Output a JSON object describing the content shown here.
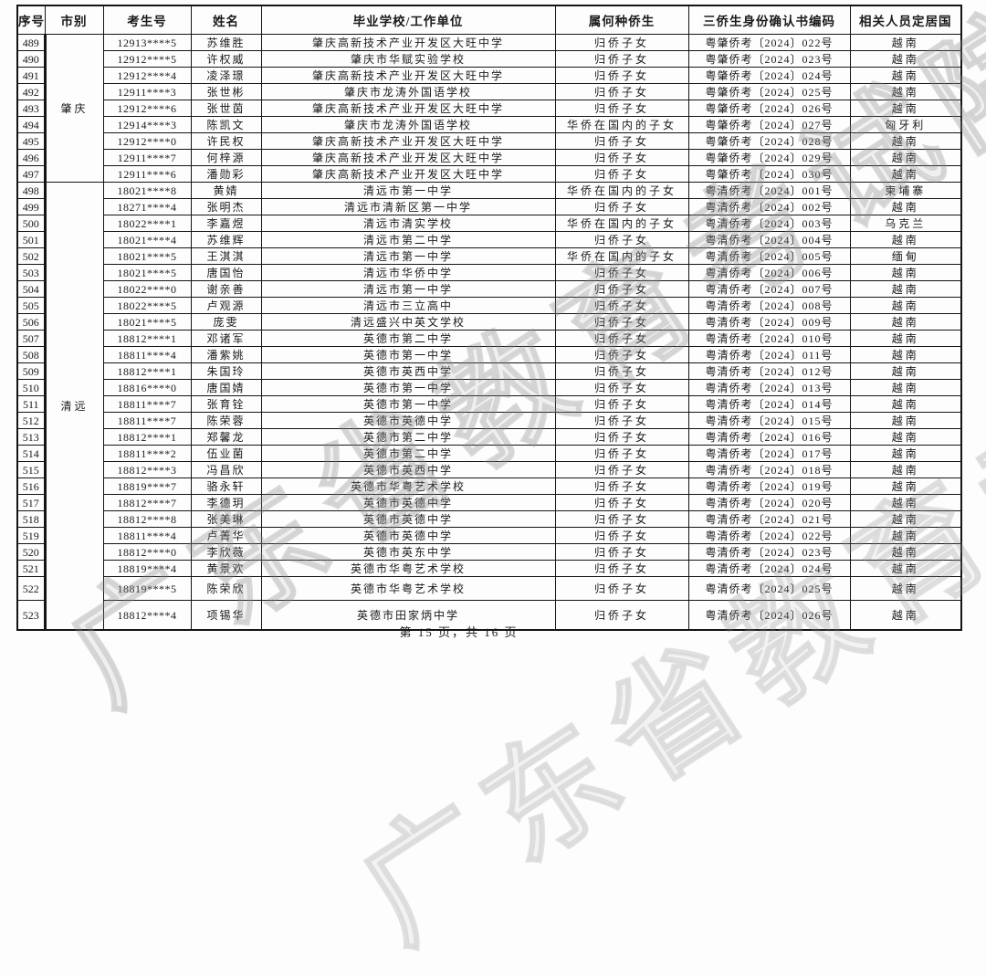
{
  "page": {
    "footer": "第 15 页，共 16 页",
    "watermark": "广东省教育考试院"
  },
  "table": {
    "headers": [
      "序号",
      "市别",
      "考生号",
      "姓名",
      "毕业学校/工作单位",
      "属何种侨生",
      "三侨生身份确认书编码",
      "相关人员定居国"
    ],
    "groups": [
      {
        "city": "肇庆",
        "rows": [
          [
            "489",
            "12913****5",
            "苏维胜",
            "肇庆高新技术产业开发区大旺中学",
            "归侨子女",
            "粤肇侨考〔2024〕022号",
            "越南"
          ],
          [
            "490",
            "12912****5",
            "许权威",
            "肇庆市华赋实验学校",
            "归侨子女",
            "粤肇侨考〔2024〕023号",
            "越南"
          ],
          [
            "491",
            "12912****4",
            "凌泽璟",
            "肇庆高新技术产业开发区大旺中学",
            "归侨子女",
            "粤肇侨考〔2024〕024号",
            "越南"
          ],
          [
            "492",
            "12911****3",
            "张世彬",
            "肇庆市龙涛外国语学校",
            "归侨子女",
            "粤肇侨考〔2024〕025号",
            "越南"
          ],
          [
            "493",
            "12912****6",
            "张世茵",
            "肇庆高新技术产业开发区大旺中学",
            "归侨子女",
            "粤肇侨考〔2024〕026号",
            "越南"
          ],
          [
            "494",
            "12914****3",
            "陈凯文",
            "肇庆市龙涛外国语学校",
            "华侨在国内的子女",
            "粤肇侨考〔2024〕027号",
            "匈牙利"
          ],
          [
            "495",
            "12912****0",
            "许民权",
            "肇庆高新技术产业开发区大旺中学",
            "归侨子女",
            "粤肇侨考〔2024〕028号",
            "越南"
          ],
          [
            "496",
            "12911****7",
            "何梓源",
            "肇庆高新技术产业开发区大旺中学",
            "归侨子女",
            "粤肇侨考〔2024〕029号",
            "越南"
          ],
          [
            "497",
            "12911****6",
            "潘勋彩",
            "肇庆高新技术产业开发区大旺中学",
            "归侨子女",
            "粤肇侨考〔2024〕030号",
            "越南"
          ]
        ]
      },
      {
        "city": "清远",
        "rows": [
          [
            "498",
            "18021****8",
            "黄婧",
            "清远市第一中学",
            "华侨在国内的子女",
            "粤清侨考〔2024〕001号",
            "柬埔寨"
          ],
          [
            "499",
            "18271****4",
            "张明杰",
            "清远市清新区第一中学",
            "归侨子女",
            "粤清侨考〔2024〕002号",
            "越南"
          ],
          [
            "500",
            "18022****1",
            "李嘉煜",
            "清远市清实学校",
            "华侨在国内的子女",
            "粤清侨考〔2024〕003号",
            "乌克兰"
          ],
          [
            "501",
            "18021****4",
            "苏维辉",
            "清远市第二中学",
            "归侨子女",
            "粤清侨考〔2024〕004号",
            "越南"
          ],
          [
            "502",
            "18021****5",
            "王淇淇",
            "清远市第一中学",
            "华侨在国内的子女",
            "粤清侨考〔2024〕005号",
            "缅甸"
          ],
          [
            "503",
            "18021****5",
            "唐国怡",
            "清远市华侨中学",
            "归侨子女",
            "粤清侨考〔2024〕006号",
            "越南"
          ],
          [
            "504",
            "18022****0",
            "谢亲善",
            "清远市第一中学",
            "归侨子女",
            "粤清侨考〔2024〕007号",
            "越南"
          ],
          [
            "505",
            "18022****5",
            "卢观源",
            "清远市三立高中",
            "归侨子女",
            "粤清侨考〔2024〕008号",
            "越南"
          ],
          [
            "506",
            "18021****5",
            "庞雯",
            "清远盛兴中英文学校",
            "归侨子女",
            "粤清侨考〔2024〕009号",
            "越南"
          ],
          [
            "507",
            "18812****1",
            "邓诸军",
            "英德市第二中学",
            "归侨子女",
            "粤清侨考〔2024〕010号",
            "越南"
          ],
          [
            "508",
            "18811****4",
            "潘紫姚",
            "英德市第一中学",
            "归侨子女",
            "粤清侨考〔2024〕011号",
            "越南"
          ],
          [
            "509",
            "18812****1",
            "朱国玲",
            "英德市英西中学",
            "归侨子女",
            "粤清侨考〔2024〕012号",
            "越南"
          ],
          [
            "510",
            "18816****0",
            "唐国婧",
            "英德市第一中学",
            "归侨子女",
            "粤清侨考〔2024〕013号",
            "越南"
          ],
          [
            "511",
            "18811****7",
            "张育铨",
            "英德市第一中学",
            "归侨子女",
            "粤清侨考〔2024〕014号",
            "越南"
          ],
          [
            "512",
            "18811****7",
            "陈荣蓉",
            "英德市英德中学",
            "归侨子女",
            "粤清侨考〔2024〕015号",
            "越南"
          ],
          [
            "513",
            "18812****1",
            "郑馨龙",
            "英德市第二中学",
            "归侨子女",
            "粤清侨考〔2024〕016号",
            "越南"
          ],
          [
            "514",
            "18811****2",
            "伍业菌",
            "英德市第二中学",
            "归侨子女",
            "粤清侨考〔2024〕017号",
            "越南"
          ],
          [
            "515",
            "18812****3",
            "冯昌欣",
            "英德市英西中学",
            "归侨子女",
            "粤清侨考〔2024〕018号",
            "越南"
          ],
          [
            "516",
            "18819****7",
            "骆永轩",
            "英德市华粤艺术学校",
            "归侨子女",
            "粤清侨考〔2024〕019号",
            "越南"
          ],
          [
            "517",
            "18812****7",
            "李德玥",
            "英德市英德中学",
            "归侨子女",
            "粤清侨考〔2024〕020号",
            "越南"
          ],
          [
            "518",
            "18812****8",
            "张美琳",
            "英德市英德中学",
            "归侨子女",
            "粤清侨考〔2024〕021号",
            "越南"
          ],
          [
            "519",
            "18811****4",
            "卢菁华",
            "英德市英德中学",
            "归侨子女",
            "粤清侨考〔2024〕022号",
            "越南"
          ],
          [
            "520",
            "18812****0",
            "李欣薇",
            "英德市英东中学",
            "归侨子女",
            "粤清侨考〔2024〕023号",
            "越南"
          ],
          [
            "521",
            "18819****4",
            "黄景欢",
            "英德市华粤艺术学校",
            "归侨子女",
            "粤清侨考〔2024〕024号",
            "越南"
          ],
          [
            "522",
            "18819****5",
            "陈荣欣",
            "英德市华粤艺术学校",
            "归侨子女",
            "粤清侨考〔2024〕025号",
            "越南"
          ],
          [
            "523",
            "18812****4",
            "项锡华",
            "英德市田家炳中学",
            "归侨子女",
            "粤清侨考〔2024〕026号",
            "越南"
          ]
        ]
      }
    ]
  }
}
